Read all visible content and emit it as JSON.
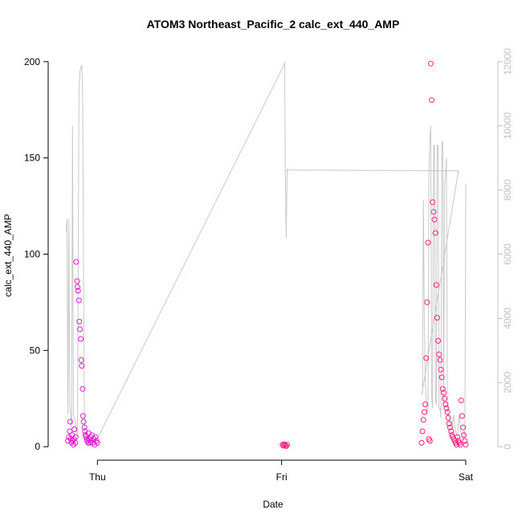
{
  "chart_data": {
    "type": "scatter",
    "title": "ATOM3 Northeast_Pacific_2 calc_ext_440_AMP",
    "xlabel": "Date",
    "ylabel": "calc_ext_440_AMP",
    "x_ticks": [
      "Thu",
      "Fri",
      "Sat"
    ],
    "x_range_days": [
      -2.18,
      0.0
    ],
    "y_left": {
      "ticks": [
        0,
        50,
        100,
        150,
        200
      ],
      "range": [
        -7,
        207
      ]
    },
    "y_right": {
      "ticks": [
        0,
        2000,
        4000,
        6000,
        8000,
        10000,
        12000
      ],
      "range": [
        -420,
        12420
      ],
      "color": "#c0c0c0"
    },
    "grid": false,
    "legend": "none",
    "colors": {
      "points_early": "#e41ad0",
      "points_late": "#ff1f80",
      "line": "#c8c8c8"
    },
    "series": [
      {
        "kind": "points",
        "axis": "left",
        "note_x": "days relative to Sat tick",
        "x": [
          -2.16,
          -2.155,
          -2.15,
          -2.148,
          -2.145,
          -2.14,
          -2.138,
          -2.135,
          -2.13,
          -2.128,
          -2.125,
          -2.12,
          -2.118,
          -2.115,
          -2.11,
          -2.108,
          -2.105,
          -2.1,
          -2.098,
          -2.095,
          -2.09,
          -2.088,
          -2.085,
          -2.08,
          -2.078,
          -2.075,
          -2.07,
          -2.068,
          -2.065,
          -2.06,
          -2.058,
          -2.055,
          -2.05,
          -2.048,
          -2.045,
          -2.04,
          -2.038,
          -2.035,
          -2.03,
          -2.025,
          -2.02,
          -2.015,
          -2.01,
          -2.005,
          -2.0,
          -0.995,
          -0.99,
          -0.985,
          -0.98,
          -0.975,
          -0.97,
          -0.24,
          -0.235,
          -0.23,
          -0.225,
          -0.22,
          -0.215,
          -0.21,
          -0.205,
          -0.2,
          -0.195,
          -0.19,
          -0.185,
          -0.18,
          -0.175,
          -0.17,
          -0.165,
          -0.16,
          -0.155,
          -0.15,
          -0.145,
          -0.14,
          -0.135,
          -0.13,
          -0.125,
          -0.12,
          -0.115,
          -0.11,
          -0.105,
          -0.1,
          -0.095,
          -0.09,
          -0.085,
          -0.08,
          -0.075,
          -0.07,
          -0.065,
          -0.06,
          -0.055,
          -0.05,
          -0.045,
          -0.04,
          -0.035,
          -0.03,
          -0.025,
          -0.02,
          -0.015,
          -0.01,
          -0.005,
          0.0
        ],
        "y": [
          3,
          5,
          8,
          13,
          4,
          2,
          6,
          3,
          1,
          4,
          9,
          2,
          5,
          96,
          86,
          83,
          81,
          76,
          65,
          61,
          56,
          45,
          42,
          30,
          16,
          13,
          10,
          8,
          6,
          5,
          4,
          3,
          2,
          7,
          4,
          2,
          5,
          3,
          6,
          2,
          4,
          1,
          5,
          3,
          2,
          1,
          0.5,
          1.2,
          0.8,
          0.3,
          1,
          2,
          8,
          14,
          18,
          22,
          46,
          75,
          106,
          4,
          3,
          199,
          180,
          127,
          122,
          118,
          111,
          84,
          67,
          55,
          48,
          45,
          40,
          36,
          30,
          28,
          25,
          22,
          20,
          18,
          15,
          12,
          10,
          8,
          6,
          5,
          4,
          3,
          2,
          1,
          5,
          3,
          2,
          1,
          24,
          16,
          10,
          6,
          3,
          1
        ]
      },
      {
        "kind": "line",
        "axis": "right",
        "x": [
          -2.17,
          -2.165,
          -2.16,
          -2.155,
          -2.15,
          -2.14,
          -2.135,
          -2.13,
          -2.12,
          -2.11,
          -2.108,
          -2.1,
          -2.095,
          -2.09,
          -2.085,
          -2.08,
          -2.07,
          -2.065,
          -2.06,
          -2.055,
          -2.05,
          -2.045,
          -2.04,
          -2.035,
          -2.03,
          -2.025,
          -2.02,
          -2.015,
          -2.01,
          -2.005,
          -2.0,
          -0.985,
          -0.983,
          -0.98,
          -0.975,
          -0.97,
          -0.965,
          -0.96,
          -0.955,
          -0.04,
          -0.24,
          -0.235,
          -0.23,
          -0.225,
          -0.22,
          -0.215,
          -0.21,
          -0.205,
          -0.2,
          -0.195,
          -0.19,
          -0.185,
          -0.18,
          -0.175,
          -0.17,
          -0.165,
          -0.16,
          -0.155,
          -0.15,
          -0.145,
          -0.14,
          -0.135,
          -0.13,
          -0.125,
          -0.12,
          -0.115,
          -0.11,
          -0.105,
          -0.1,
          -0.095,
          -0.09,
          -0.085,
          -0.08,
          -0.075,
          -0.07,
          -0.065,
          -0.06,
          -0.055,
          -0.05,
          -0.045,
          -0.04,
          -0.035,
          -0.03,
          -0.025,
          -0.02,
          -0.015,
          -0.01,
          -0.005,
          0.0
        ],
        "y": [
          6700,
          7100,
          1000,
          7100,
          1300,
          600,
          10000,
          1000,
          800,
          300,
          600,
          11000,
          11700,
          11800,
          11900,
          11000,
          300,
          300,
          280,
          280,
          270,
          260,
          250,
          240,
          230,
          220,
          210,
          200,
          230,
          240,
          250,
          11920,
          12000,
          8700,
          6500,
          8650,
          8640,
          8630,
          8620,
          8600,
          1600,
          1700,
          7700,
          4000,
          2000,
          1500,
          1000,
          1200,
          8500,
          9600,
          10000,
          1500,
          1200,
          9400,
          9400,
          1500,
          1300,
          9400,
          9400,
          1200,
          1200,
          900,
          9500,
          9500,
          1300,
          8200,
          8500,
          9000,
          1200,
          1000,
          900,
          800,
          700,
          600,
          800,
          1000,
          600,
          500,
          400,
          300,
          800,
          1000,
          600,
          400,
          300,
          200,
          500,
          300,
          8200
        ]
      }
    ]
  }
}
